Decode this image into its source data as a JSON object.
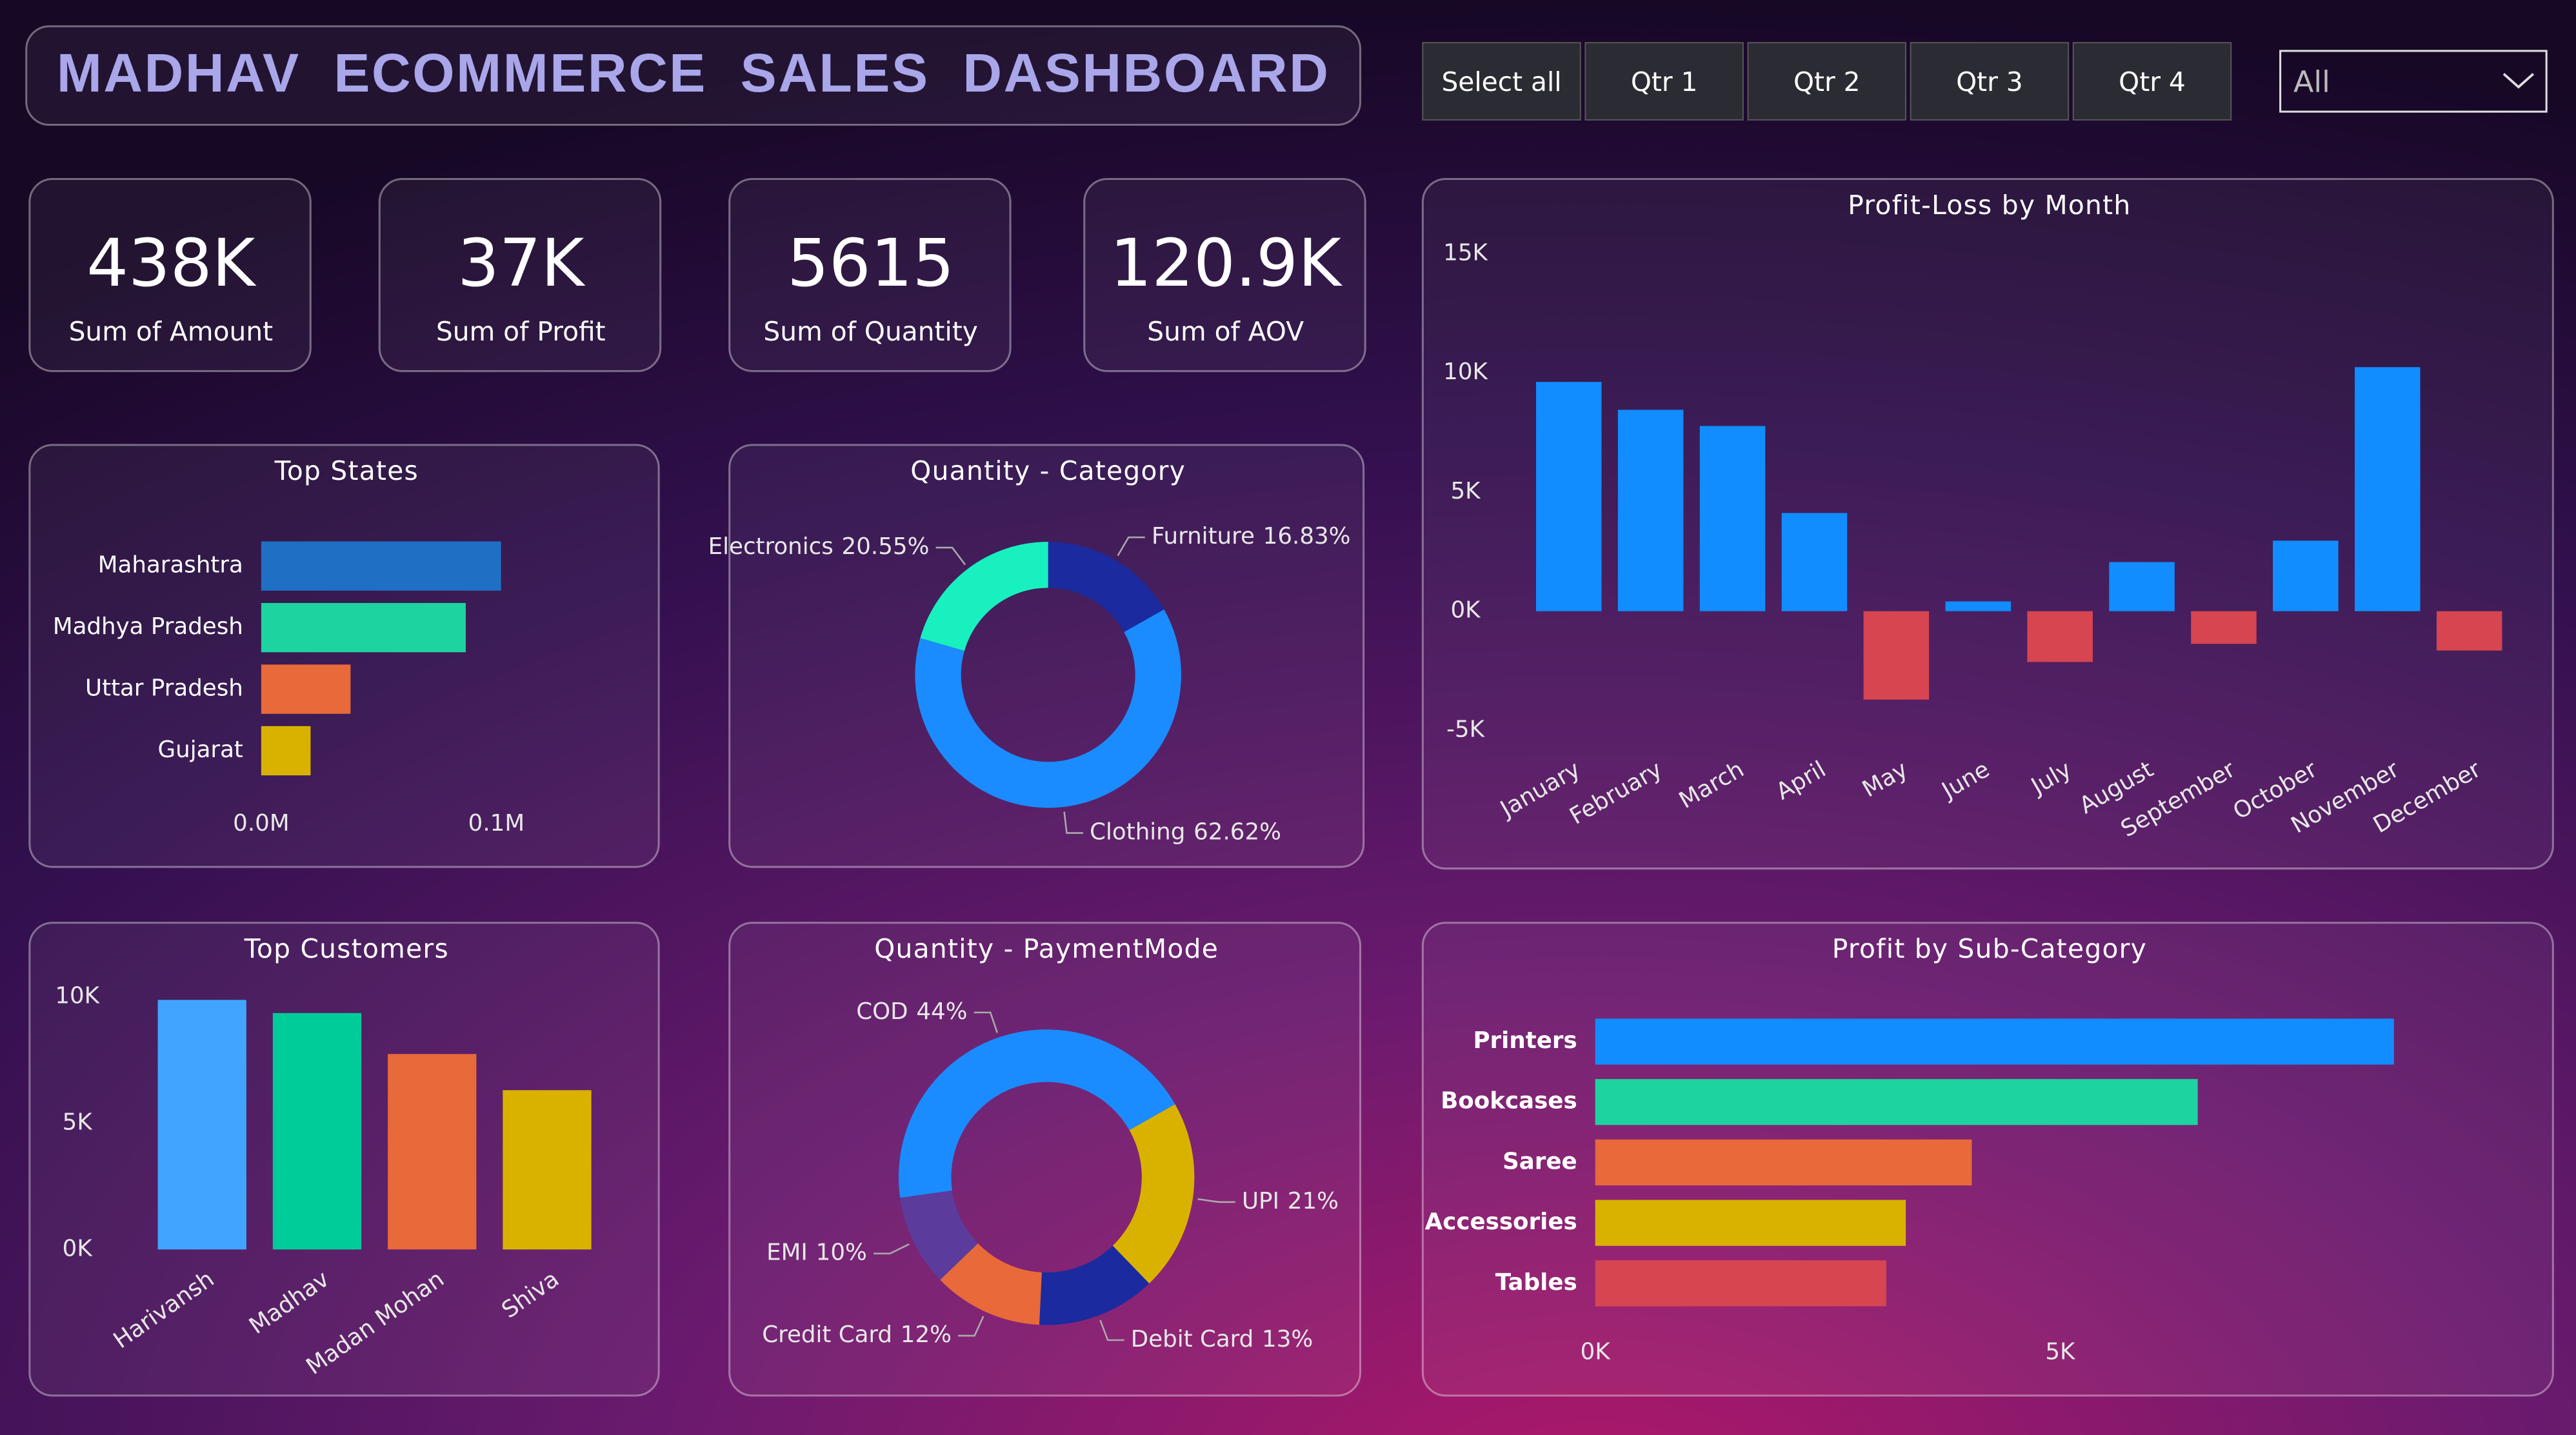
{
  "header": {
    "title": "MADHAV  ECOMMERCE  SALES  DASHBOARD"
  },
  "filters": {
    "buttons": [
      "Select all",
      "Qtr 1",
      "Qtr 2",
      "Qtr 3",
      "Qtr 4"
    ],
    "dropdown": "All"
  },
  "kpis": [
    {
      "value": "438K",
      "label": "Sum of Amount"
    },
    {
      "value": "37K",
      "label": "Sum of Profit"
    },
    {
      "value": "5615",
      "label": "Sum of Quantity"
    },
    {
      "value": "120.9K",
      "label": "Sum of AOV"
    }
  ],
  "chart_data": [
    {
      "type": "hbar",
      "title": "Top States",
      "categories": [
        "Maharashtra",
        "Madhya Pradesh",
        "Uttar Pradesh",
        "Gujarat"
      ],
      "values": [
        0.102,
        0.087,
        0.038,
        0.021
      ],
      "colors": [
        "#1f6fc5",
        "#1dd3a0",
        "#e8693a",
        "#d9b200"
      ],
      "xlim": [
        0,
        0.16
      ],
      "xticks": [
        {
          "value": 0,
          "label": "0.0M"
        },
        {
          "value": 0.1,
          "label": "0.1M"
        }
      ]
    },
    {
      "type": "donut",
      "title": "Quantity - Category",
      "categories": [
        "Furniture",
        "Clothing",
        "Electronics"
      ],
      "values": [
        16.83,
        62.62,
        20.55
      ],
      "value_labels": [
        "16.83%",
        "62.62%",
        "20.55%"
      ],
      "colors": [
        "#1b2a9e",
        "#1a8cff",
        "#19f0c0"
      ]
    },
    {
      "type": "bar",
      "title": "Profit-Loss by Month",
      "categories": [
        "January",
        "February",
        "March",
        "April",
        "May",
        "June",
        "July",
        "August",
        "September",
        "October",
        "November",
        "December"
      ],
      "values": [
        9620,
        8450,
        7770,
        4120,
        -3710,
        410,
        -2130,
        2060,
        -1370,
        2960,
        10240,
        -1650
      ],
      "color": "#118dff",
      "negative_color": "#d64550",
      "ylim": [
        -5700,
        16000
      ],
      "yticks": [
        {
          "value": -5000,
          "label": "-5K"
        },
        {
          "value": 0,
          "label": "0K"
        },
        {
          "value": 5000,
          "label": "5K"
        },
        {
          "value": 10000,
          "label": "10K"
        },
        {
          "value": 15000,
          "label": "15K"
        }
      ]
    },
    {
      "type": "bar",
      "title": "Top Customers",
      "categories": [
        "Harivansh",
        "Madhav",
        "Madan Mohan",
        "Shiva"
      ],
      "values": [
        9870,
        9350,
        7730,
        6300
      ],
      "colors": [
        "#41a5ff",
        "#00cc99",
        "#e8693a",
        "#d9b200"
      ],
      "ylim": [
        0,
        10500
      ],
      "yticks": [
        {
          "value": 0,
          "label": "0K"
        },
        {
          "value": 5000,
          "label": "5K"
        },
        {
          "value": 10000,
          "label": "10K"
        }
      ]
    },
    {
      "type": "donut",
      "title": "Quantity - PaymentMode",
      "categories": [
        "COD",
        "UPI",
        "Debit Card",
        "Credit Card",
        "EMI"
      ],
      "values": [
        44,
        21,
        13,
        12,
        10
      ],
      "value_labels": [
        "44%",
        "21%",
        "13%",
        "12%",
        "10%"
      ],
      "colors": [
        "#1a8cff",
        "#d9b200",
        "#1b2a9e",
        "#e8693a",
        "#5b3c9c"
      ]
    },
    {
      "type": "hbar",
      "title": "Profit by Sub-Category",
      "categories": [
        "Printers",
        "Bookcases",
        "Saree",
        "Accessories",
        "Tables"
      ],
      "values": [
        8590,
        6480,
        4050,
        3340,
        3130
      ],
      "colors": [
        "#118dff",
        "#1dd3a0",
        "#e8693a",
        "#d9b200",
        "#d64550"
      ],
      "xlim": [
        0,
        9700
      ],
      "xticks": [
        {
          "value": 0,
          "label": "0K"
        },
        {
          "value": 5000,
          "label": "5K"
        }
      ]
    }
  ]
}
